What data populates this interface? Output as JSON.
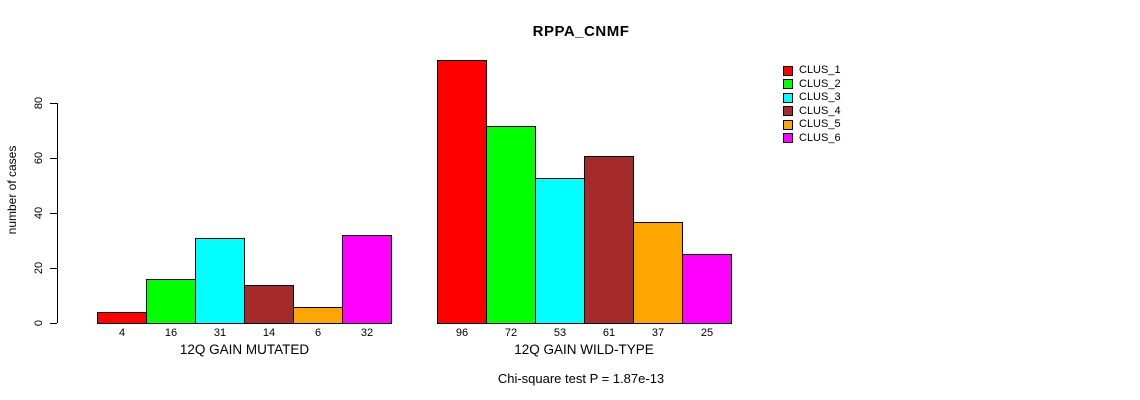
{
  "chart_data": {
    "type": "bar",
    "title": "RPPA_CNMF",
    "ylabel": "number of cases",
    "xlabel": "",
    "annotation": "Chi-square test P = 1.87e-13",
    "y_ticks": [
      0,
      20,
      40,
      60,
      80
    ],
    "ylim": [
      0,
      96
    ],
    "grid": false,
    "legend_position": "right",
    "groups": [
      {
        "label": "12Q GAIN MUTATED",
        "values": [
          4,
          16,
          31,
          14,
          6,
          32
        ]
      },
      {
        "label": "12Q GAIN WILD-TYPE",
        "values": [
          96,
          72,
          53,
          61,
          37,
          25
        ]
      }
    ],
    "series": [
      {
        "name": "CLUS_1",
        "color": "#FF0000"
      },
      {
        "name": "CLUS_2",
        "color": "#00FF00"
      },
      {
        "name": "CLUS_3",
        "color": "#00FFFF"
      },
      {
        "name": "CLUS_4",
        "color": "#A52A2A"
      },
      {
        "name": "CLUS_5",
        "color": "#FFA500"
      },
      {
        "name": "CLUS_6",
        "color": "#FF00FF"
      }
    ],
    "colors": {
      "axis": "#000000",
      "text": "#000000",
      "background": "#FFFFFF"
    }
  }
}
